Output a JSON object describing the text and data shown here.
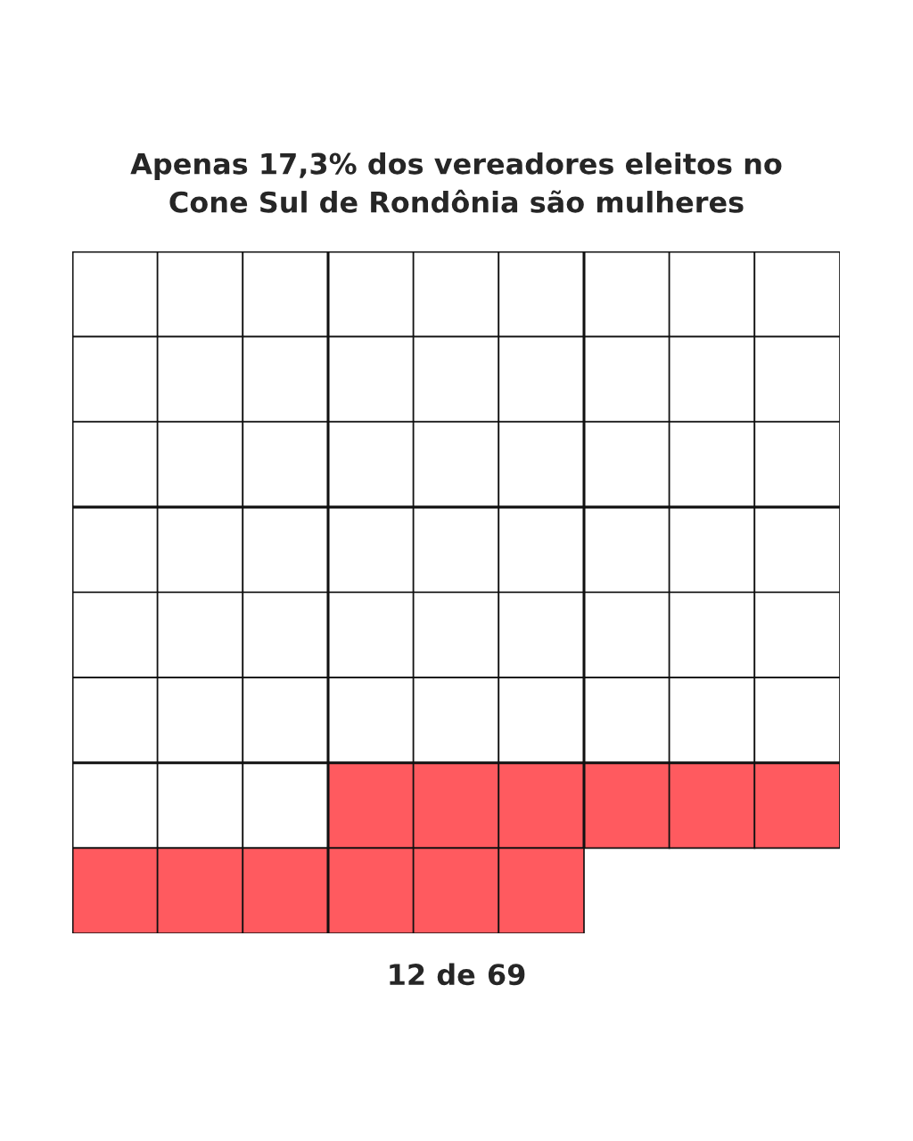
{
  "chart_data": {
    "type": "other",
    "title": "Apenas 17,3% dos vereadores eleitos no\nCone Sul de Rondônia são mulheres",
    "values": [
      12,
      69
    ],
    "value_labels": [
      "12 de",
      "69"
    ],
    "colors": [
      "#ff5a5f",
      "#ffffff"
    ]
  }
}
